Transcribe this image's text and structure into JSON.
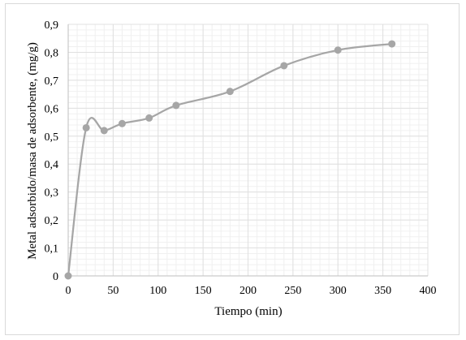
{
  "chart_data": {
    "type": "line",
    "title": "",
    "xlabel": "Tiempo (min)",
    "ylabel": "Metal adsorbido/masa de adsorbente, (mg/g)",
    "xlim": [
      0,
      400
    ],
    "ylim": [
      0,
      0.9
    ],
    "x_ticks": [
      "0",
      "50",
      "100",
      "150",
      "200",
      "250",
      "300",
      "350",
      "400"
    ],
    "y_ticks": [
      "0",
      "0,1",
      "0,2",
      "0,3",
      "0,4",
      "0,5",
      "0,6",
      "0,7",
      "0,8",
      "0,9"
    ],
    "grid": true,
    "smooth": true,
    "line_color": "#a6a6a6",
    "grid_color": "#e0e0e0",
    "series": [
      {
        "x": [
          0,
          20,
          40,
          60,
          90,
          120,
          180,
          240,
          300,
          360
        ],
        "y": [
          0,
          0.53,
          0.52,
          0.545,
          0.565,
          0.61,
          0.66,
          0.752,
          0.808,
          0.83
        ]
      }
    ]
  }
}
